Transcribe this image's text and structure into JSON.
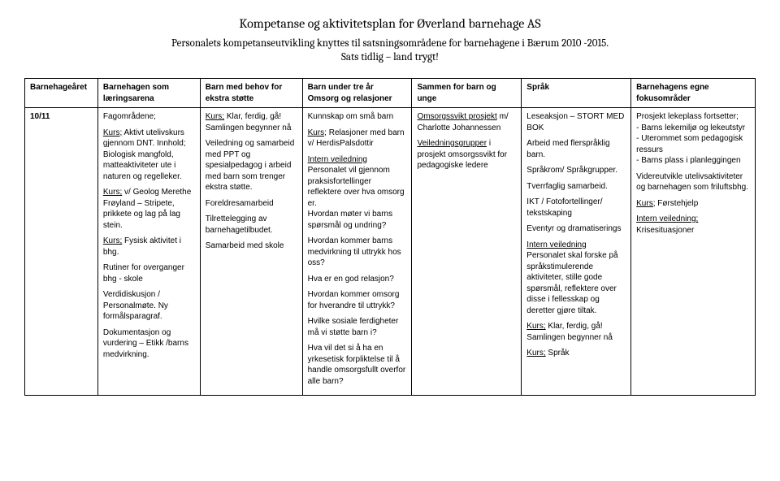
{
  "header": {
    "title": "Kompetanse og aktivitetsplan for Øverland barnehage AS",
    "subtitle1": "Personalets kompetanseutvikling knyttes til satsningsområdene for barnehagene i Bærum 2010 -2015.",
    "subtitle2": "Sats tidlig – land trygt!"
  },
  "table": {
    "headers": {
      "c0": "Barnehageåret",
      "c1": "Barnehagen som læringsarena",
      "c2": "Barn med behov for ekstra støtte",
      "c3": "Barn under tre år Omsorg og relasjoner",
      "c4": "Sammen for barn og unge",
      "c5": "Språk",
      "c6": "Barnehagens egne fokusområder"
    },
    "row": {
      "year": "10/11",
      "c1": {
        "p1": "Fagområdene;",
        "p2a": "Kurs;",
        "p2b": " Aktivt utelivskurs gjennom DNT. Innhold; Biologisk mangfold, matteaktiviteter ute i naturen og regelleker.",
        "p3a": "Kurs;",
        "p3b": " v/ Geolog Merethe Frøyland – Stripete, prikkete og lag på lag stein.",
        "p4a": "Kurs;",
        "p4b": " Fysisk aktivitet i bhg.",
        "p5": "Rutiner for overganger bhg - skole",
        "p6": "Verdidiskusjon / Personalmøte. Ny formålsparagraf.",
        "p7": "Dokumentasjon og vurdering – Etikk /barns medvirkning."
      },
      "c2": {
        "p1a": "Kurs;",
        "p1b": " Klar, ferdig, gå! Samlingen begynner nå",
        "p2": "Veiledning og samarbeid med PPT og spesialpedagog i arbeid med barn som trenger ekstra støtte.",
        "p3": "Foreldresamarbeid",
        "p4": "Tilrettelegging av barnehagetilbudet.",
        "p5": "Samarbeid med skole"
      },
      "c3": {
        "p1": "Kunnskap om små barn",
        "p2a": "Kurs;",
        "p2b": " Relasjoner med barn v/ HerdisPalsdottir",
        "p3a": "Intern veiledning",
        "p3b": "Personalet vil gjennom praksisfortellinger reflektere over hva omsorg er.",
        "p3c": "Hvordan møter vi barns spørsmål og undring?",
        "p4": "Hvordan kommer barns medvirkning til uttrykk hos oss?",
        "p5": "Hva er en god relasjon?",
        "p6": "Hvordan kommer omsorg for hverandre til uttrykk?",
        "p7": "Hvilke sosiale ferdigheter må vi støtte barn i?",
        "p8": "Hva vil det si å ha en yrkesetisk forpliktelse til å handle omsorgsfullt overfor alle barn?"
      },
      "c4": {
        "p1a": "Omsorgssvikt prosjekt",
        "p1b": " m/ Charlotte Johannessen",
        "p2a": "Veiledningsgrupper",
        "p2b": " i prosjekt omsorgssvikt for pedagogiske ledere"
      },
      "c5": {
        "p1": "Leseaksjon – STORT MED BOK",
        "p2": "Arbeid med flerspråklig barn.",
        "p3": "Språkrom/ Språkgrupper.",
        "p4": "Tverrfaglig samarbeid.",
        "p5": "IKT / Fotofortellinger/ tekstskaping",
        "p6": "Eventyr og dramatiserings",
        "p7a": "Intern veiledning",
        "p7b": "Personalet skal forske på språkstimulerende aktiviteter, stille gode spørsmål, reflektere over disse i fellesskap og deretter gjøre tiltak.",
        "p8a": "Kurs;",
        "p8b": " Klar, ferdig, gå! Samlingen begynner nå",
        "p9a": "Kurs;",
        "p9b": " Språk"
      },
      "c6": {
        "p1a": "Prosjekt lekeplass fortsetter;",
        "p1b": "- Barns lekemiljø og lekeutstyr",
        "p1c": "- Uterommet som pedagogisk ressurs",
        "p1d": "- Barns plass i planleggingen",
        "p2": "Videreutvikle utelivsaktiviteter og barnehagen som friluftsbhg.",
        "p3a": "Kurs;",
        "p3b": " Førstehjelp",
        "p4a": "Intern veiledning;",
        "p4b": "Krisesituasjoner"
      }
    }
  }
}
